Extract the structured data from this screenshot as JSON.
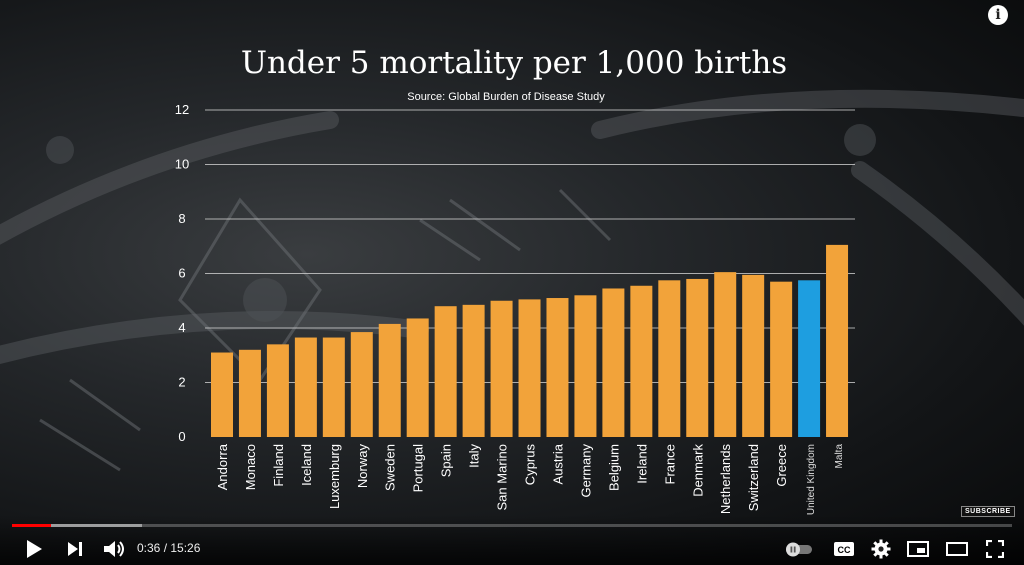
{
  "player": {
    "time_display": "0:36 / 15:26",
    "progress_fraction": 0.039,
    "buffered_fraction": 0.13,
    "subscribe_label": "SUBSCRIBE",
    "info_label": "i",
    "cc_label": "CC",
    "icons": [
      "play-icon",
      "next-icon",
      "volume-icon",
      "autoplay-toggle-icon",
      "cc-icon",
      "gear-icon",
      "miniplayer-icon",
      "theater-icon",
      "fullscreen-icon",
      "info-icon"
    ]
  },
  "colors": {
    "bar": "#f2a33a",
    "highlight": "#1e9ee0",
    "progress": "#ff0000",
    "grid": "#d0d0d0"
  },
  "chart_data": {
    "type": "bar",
    "title": "Under 5 mortality per 1,000 births",
    "subtitle": "Source: Global Burden of Disease Study",
    "xlabel": "",
    "ylabel": "",
    "ylim": [
      0,
      12
    ],
    "yticks": [
      0,
      2,
      4,
      6,
      8,
      10,
      12
    ],
    "grid": true,
    "categories": [
      "Andorra",
      "Monaco",
      "Finland",
      "Iceland",
      "Luxemburg",
      "Norway",
      "Sweden",
      "Portugal",
      "Spain",
      "Italy",
      "San Marino",
      "Cyprus",
      "Austria",
      "Germany",
      "Belgium",
      "Ireland",
      "France",
      "Denmark",
      "Netherlands",
      "Switzerland",
      "Greece",
      "United Kingdom",
      "Malta"
    ],
    "values": [
      3.1,
      3.2,
      3.4,
      3.65,
      3.65,
      3.85,
      4.15,
      4.35,
      4.8,
      4.85,
      5.0,
      5.05,
      5.1,
      5.2,
      5.45,
      5.55,
      5.75,
      5.8,
      6.05,
      5.95,
      5.7,
      5.75,
      7.05
    ],
    "highlight": "United Kingdom"
  }
}
